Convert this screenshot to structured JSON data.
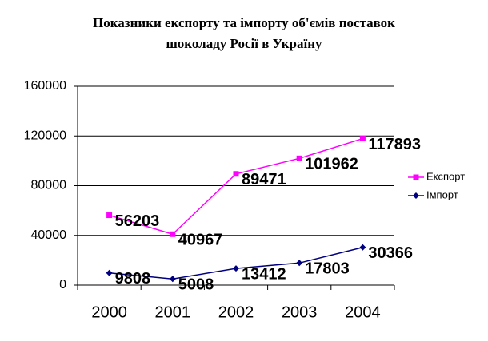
{
  "chart_data": {
    "type": "line",
    "title": [
      "Показники експорту та імпорту об'ємів поставок",
      "шоколаду Росії в Україну"
    ],
    "categories": [
      "2000",
      "2001",
      "2002",
      "2003",
      "2004"
    ],
    "series": [
      {
        "name": "Експорт",
        "color": "#ff00ff",
        "marker": "square",
        "values": [
          56203,
          40967,
          89471,
          101962,
          117893
        ]
      },
      {
        "name": "Імпорт",
        "color": "#000080",
        "marker": "diamond",
        "values": [
          9808,
          5008,
          13412,
          17803,
          30366
        ]
      }
    ],
    "ylim": [
      0,
      160000
    ],
    "yticks": [
      0,
      40000,
      80000,
      120000,
      160000
    ],
    "grid": true,
    "legend": "right"
  }
}
